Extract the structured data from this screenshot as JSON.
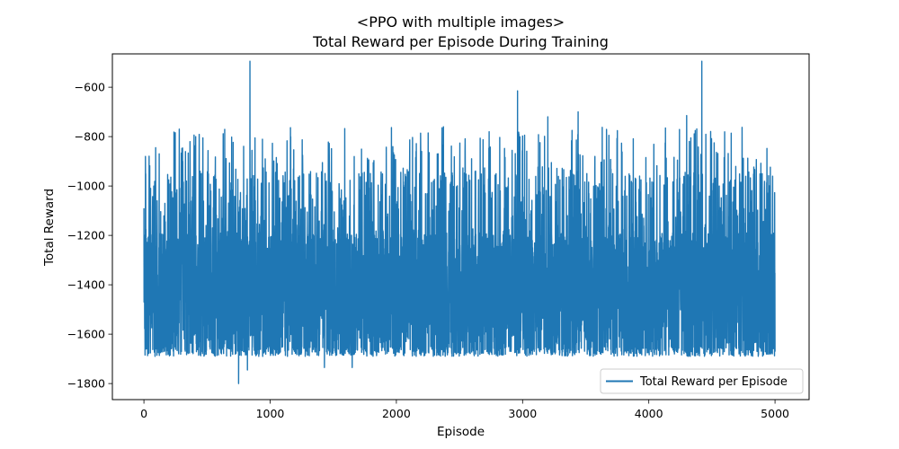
{
  "chart_data": {
    "type": "line",
    "title": "<PPO with multiple images>",
    "subtitle": "Total Reward per Episode During Training",
    "xlabel": "Episode",
    "ylabel": "Total Reward",
    "xlim": [
      -250,
      5270
    ],
    "ylim": [
      -1865,
      -465
    ],
    "x_ticks": [
      0,
      1000,
      2000,
      3000,
      4000,
      5000
    ],
    "y_ticks": [
      -1800,
      -1600,
      -1400,
      -1200,
      -1000,
      -800,
      -600
    ],
    "x_tick_labels": [
      "0",
      "1000",
      "2000",
      "3000",
      "4000",
      "5000"
    ],
    "y_tick_labels": [
      "−1800",
      "−1600",
      "−1400",
      "−1200",
      "−1000",
      "−800",
      "−600"
    ],
    "grid": false,
    "legend_position": "lower-right",
    "series": [
      {
        "name": "Total Reward per Episode",
        "color": "#1f77b4",
        "x_start": 0,
        "x_end": 5000,
        "num_episodes": 5001,
        "typical_range": [
          -1690,
          -930
        ],
        "summary": {
          "min_value": -1800,
          "min_episode": 750,
          "max_value": -495,
          "max_episode": 840,
          "notable_peaks": [
            {
              "episode": 840,
              "value": -495
            },
            {
              "episode": 4420,
              "value": -495
            },
            {
              "episode": 2960,
              "value": -615
            },
            {
              "episode": 3200,
              "value": -720
            },
            {
              "episode": 3440,
              "value": -700
            },
            {
              "episode": 4300,
              "value": -715
            }
          ],
          "notable_troughs": [
            {
              "episode": 750,
              "value": -1800
            },
            {
              "episode": 820,
              "value": -1745
            },
            {
              "episode": 1430,
              "value": -1735
            },
            {
              "episode": 1650,
              "value": -1735
            }
          ]
        }
      }
    ]
  }
}
